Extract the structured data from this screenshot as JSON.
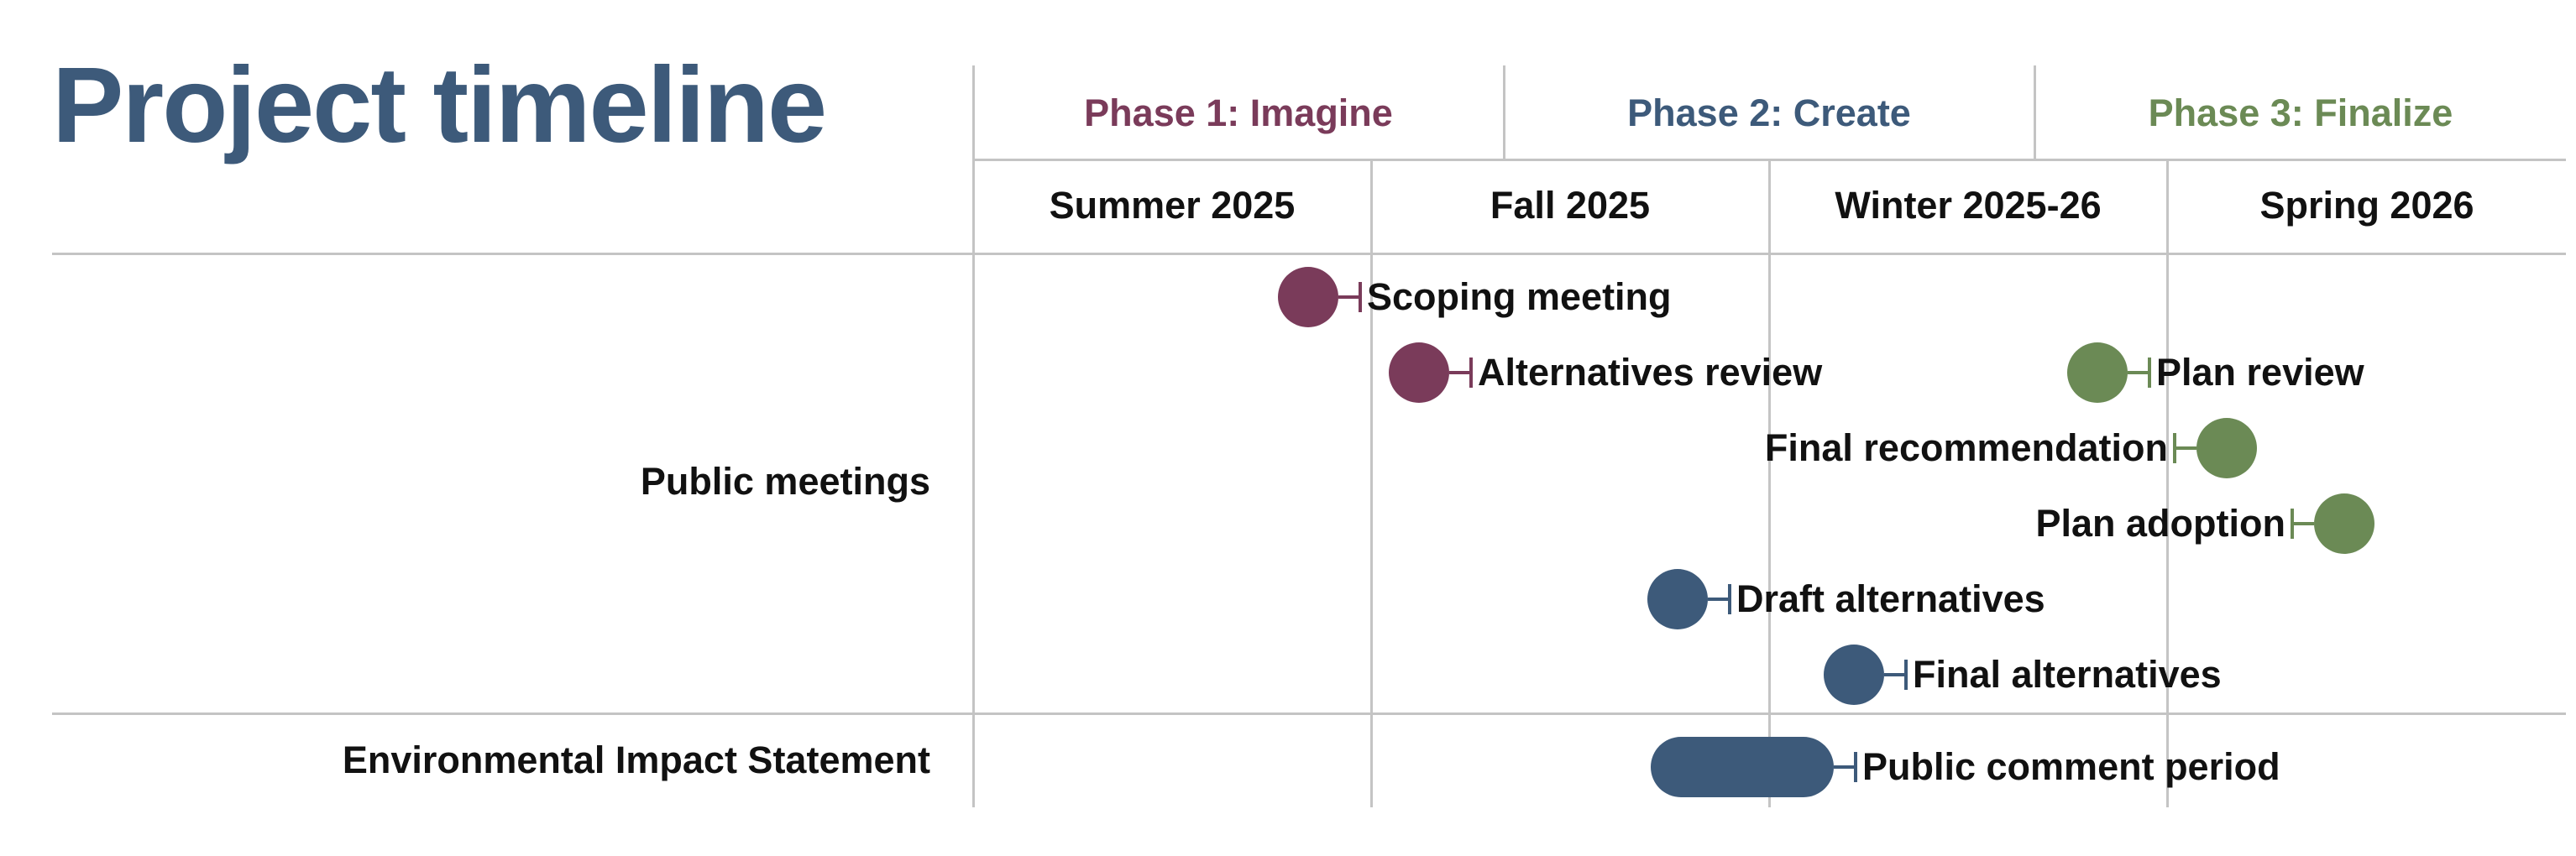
{
  "title": "Project timeline",
  "phases": [
    {
      "label": "Phase 1: Imagine",
      "color": "#7a3b5a"
    },
    {
      "label": "Phase 2: Create",
      "color": "#3d5a7a"
    },
    {
      "label": "Phase 3: Finalize",
      "color": "#6b8a55"
    }
  ],
  "seasons": [
    "Summer 2025",
    "Fall 2025",
    "Winter 2025-26",
    "Spring 2026"
  ],
  "rows": [
    {
      "label": "Public meetings"
    },
    {
      "label": "Environmental Impact Statement"
    }
  ],
  "events": [
    {
      "label": "Scoping meeting",
      "phase": 1,
      "row": "Public meetings",
      "kind": "milestone",
      "label_side": "right"
    },
    {
      "label": "Alternatives review",
      "phase": 1,
      "row": "Public meetings",
      "kind": "milestone",
      "label_side": "right"
    },
    {
      "label": "Plan review",
      "phase": 3,
      "row": "Public meetings",
      "kind": "milestone",
      "label_side": "right"
    },
    {
      "label": "Final recommendation",
      "phase": 3,
      "row": "Public meetings",
      "kind": "milestone",
      "label_side": "left"
    },
    {
      "label": "Plan adoption",
      "phase": 3,
      "row": "Public meetings",
      "kind": "milestone",
      "label_side": "left"
    },
    {
      "label": "Draft alternatives",
      "phase": 2,
      "row": "Public meetings",
      "kind": "milestone",
      "label_side": "right"
    },
    {
      "label": "Final alternatives",
      "phase": 2,
      "row": "Public meetings",
      "kind": "milestone",
      "label_side": "right"
    },
    {
      "label": "Public comment period",
      "phase": 2,
      "row": "Environmental Impact Statement",
      "kind": "period",
      "label_side": "right"
    }
  ]
}
